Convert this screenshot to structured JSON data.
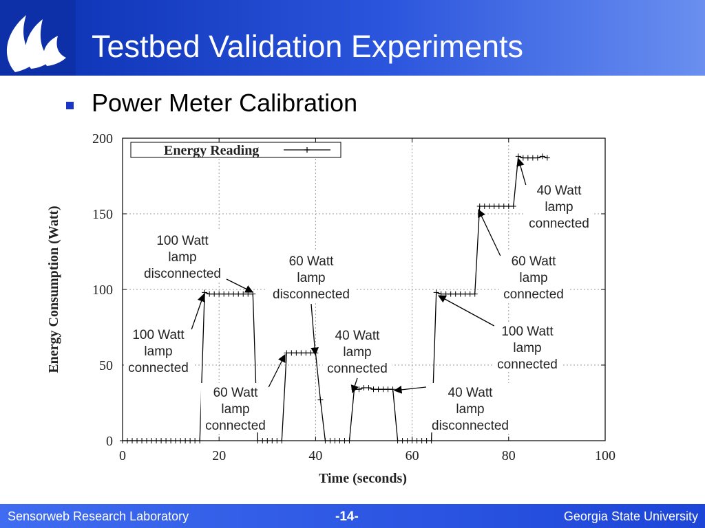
{
  "slide": {
    "title": "Testbed Validation Experiments",
    "bullet": "Power Meter Calibration"
  },
  "footer": {
    "left": "Sensorweb Research Laboratory",
    "center": "-14-",
    "right": "Georgia State University"
  },
  "colors": {
    "header_blue": "#1c44d0",
    "bullet_blue": "#1a34c6"
  },
  "chart_data": {
    "type": "line",
    "xlabel": "Time (seconds)",
    "ylabel": "Energy Consumption (Watt)",
    "xlim": [
      0,
      100
    ],
    "ylim": [
      0,
      200
    ],
    "xticks": [
      0,
      20,
      40,
      60,
      80,
      100
    ],
    "yticks": [
      0,
      50,
      100,
      150,
      200
    ],
    "grid": true,
    "legend": "top-left",
    "series": [
      {
        "name": "Energy Reading",
        "x": [
          0,
          1,
          2,
          3,
          4,
          5,
          6,
          7,
          8,
          9,
          10,
          11,
          12,
          13,
          14,
          15,
          16,
          17,
          18,
          19,
          20,
          21,
          22,
          23,
          24,
          25,
          26,
          27,
          28,
          29,
          30,
          31,
          32,
          33,
          34,
          35,
          36,
          37,
          38,
          39,
          40,
          41,
          42,
          43,
          44,
          45,
          46,
          47,
          48,
          49,
          50,
          51,
          52,
          53,
          54,
          55,
          56,
          57,
          58,
          59,
          60,
          61,
          62,
          63,
          64,
          65,
          66,
          67,
          68,
          69,
          70,
          71,
          72,
          73,
          74,
          75,
          76,
          77,
          78,
          79,
          80,
          81,
          82,
          83,
          84,
          85,
          86,
          87,
          88
        ],
        "y": [
          0,
          0,
          0,
          0,
          0,
          0,
          0,
          0,
          0,
          0,
          0,
          0,
          0,
          0,
          0,
          0,
          0,
          98,
          97,
          97,
          97,
          97,
          97,
          97,
          97,
          97,
          97,
          97,
          0,
          0,
          0,
          0,
          0,
          0,
          58,
          58,
          58,
          58,
          58,
          58,
          58,
          27,
          0,
          0,
          0,
          0,
          0,
          0,
          34,
          34,
          35,
          35,
          34,
          34,
          34,
          34,
          34,
          0,
          0,
          0,
          0,
          0,
          0,
          0,
          0,
          98,
          97,
          97,
          97,
          97,
          97,
          97,
          97,
          97,
          155,
          155,
          155,
          155,
          155,
          155,
          155,
          155,
          188,
          187,
          187,
          187,
          187,
          188,
          187
        ]
      }
    ],
    "annotations": [
      {
        "lines": [
          "100 Watt",
          "lamp",
          "disconnected"
        ],
        "x": 27,
        "y": 97
      },
      {
        "lines": [
          "100 Watt",
          "lamp",
          "connected"
        ],
        "x": 17,
        "y": 98
      },
      {
        "lines": [
          "60 Watt",
          "lamp",
          "connected"
        ],
        "x": 34,
        "y": 58
      },
      {
        "lines": [
          "60 Watt",
          "lamp",
          "disconnected"
        ],
        "x": 40,
        "y": 58
      },
      {
        "lines": [
          "40 Watt",
          "lamp",
          "connected"
        ],
        "x": 48,
        "y": 34
      },
      {
        "lines": [
          "40 Watt",
          "lamp",
          "disconnected"
        ],
        "x": 56,
        "y": 34
      },
      {
        "lines": [
          "100 Watt",
          "lamp",
          "connected"
        ],
        "x": 65,
        "y": 98
      },
      {
        "lines": [
          "60 Watt",
          "lamp",
          "connected"
        ],
        "x": 74,
        "y": 155
      },
      {
        "lines": [
          "40 Watt",
          "lamp",
          "connected"
        ],
        "x": 82,
        "y": 188
      }
    ]
  }
}
